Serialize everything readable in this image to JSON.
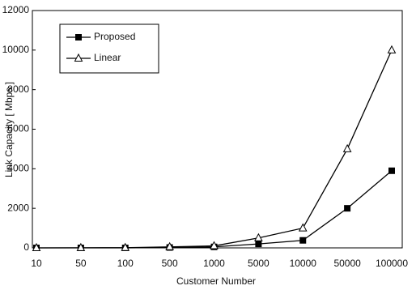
{
  "chart_data": {
    "type": "line",
    "x_label": "Customer Number",
    "y_label": "Link Capacity [ Mbps ]",
    "categories": [
      "10",
      "50",
      "100",
      "500",
      "1000",
      "5000",
      "10000",
      "50000",
      "100000"
    ],
    "series": [
      {
        "name": "Proposed",
        "color": "#000000",
        "marker": "square",
        "values": [
          0,
          0,
          0,
          20,
          50,
          200,
          380,
          2000,
          3900
        ]
      },
      {
        "name": "Linear",
        "color": "#000000",
        "marker": "triangle",
        "values": [
          1,
          5,
          10,
          50,
          100,
          500,
          1000,
          5000,
          10000
        ]
      }
    ],
    "ylim": [
      0,
      12000
    ],
    "yticks": [
      0,
      2000,
      4000,
      6000,
      8000,
      10000,
      12000
    ],
    "grid": false,
    "legend": "upper-left"
  }
}
